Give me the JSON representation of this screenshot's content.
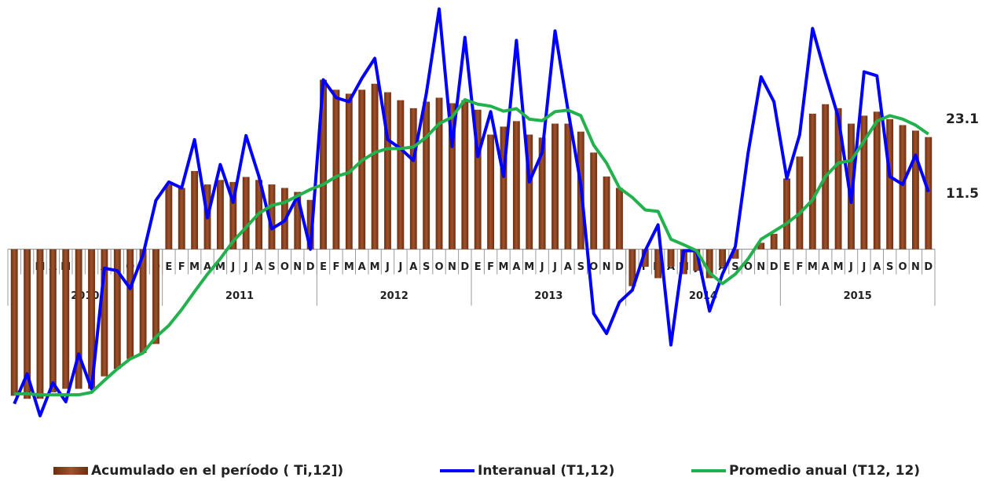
{
  "chart_data": {
    "type": "combo",
    "categories": [
      "E",
      "F",
      "M",
      "A",
      "M",
      "J",
      "J",
      "A",
      "S",
      "O",
      "N",
      "D",
      "E",
      "F",
      "M",
      "A",
      "M",
      "J",
      "J",
      "A",
      "S",
      "O",
      "N",
      "D",
      "E",
      "F",
      "M",
      "A",
      "M",
      "J",
      "J",
      "A",
      "S",
      "O",
      "N",
      "D",
      "E",
      "F",
      "M",
      "A",
      "M",
      "J",
      "J",
      "A",
      "S",
      "O",
      "N",
      "D",
      "E",
      "F",
      "M",
      "A",
      "M",
      "J",
      "J",
      "A",
      "S",
      "O",
      "N",
      "D",
      "E",
      "F",
      "M",
      "A",
      "M",
      "J",
      "J",
      "A",
      "S",
      "O",
      "N",
      "D"
    ],
    "years": [
      "2010",
      "2011",
      "2012",
      "2013",
      "2014",
      "2015"
    ],
    "ylim": [
      -35,
      50
    ],
    "series": [
      {
        "name": "Acumulado en el período ( Ti,12])",
        "type": "bar",
        "color": "#a0522d",
        "values": [
          -29.4,
          -30,
          -30,
          -28.7,
          -28,
          -28,
          -28,
          -25.5,
          -24,
          -22,
          -20.8,
          -19,
          13,
          12.3,
          15.7,
          13,
          13.9,
          13.5,
          14.5,
          13.9,
          13,
          12.3,
          11.5,
          9.9,
          34,
          32,
          31.2,
          32,
          33.2,
          31.5,
          29.9,
          28.3,
          29.6,
          30.4,
          29.3,
          29.9,
          28,
          23,
          24.6,
          25.7,
          23,
          22.4,
          25.2,
          25.2,
          23.6,
          19.4,
          14.6,
          12.3,
          -7.4,
          -3.5,
          -5.8,
          -3.5,
          -5,
          -4.3,
          -5.8,
          -3.5,
          -1.9,
          0,
          1.3,
          3.1,
          14.2,
          18.6,
          27.2,
          29.1,
          28.3,
          25.2,
          26.8,
          27.6,
          26.1,
          24.9,
          23.8,
          22.5
        ]
      },
      {
        "name": "Interanual (T1,12)",
        "type": "line",
        "color": "#0000ff",
        "values": [
          -31,
          -25,
          -33.4,
          -26.8,
          -30.6,
          -21,
          -28,
          -3.8,
          -4.3,
          -7.9,
          -1.1,
          9.8,
          13.5,
          12.3,
          22,
          6.3,
          17,
          9.4,
          22.8,
          14.6,
          4.1,
          5.7,
          10.7,
          0,
          34,
          30.4,
          29.6,
          34.3,
          38.3,
          22,
          20.2,
          17.8,
          31.2,
          48.2,
          20.6,
          42.5,
          18.6,
          27.6,
          14.6,
          41.9,
          13.5,
          19.4,
          43.8,
          28,
          13,
          -12.9,
          -16.9,
          -10.6,
          -8.2,
          -0.3,
          4.9,
          -19.2,
          -0.3,
          -0.3,
          -12.4,
          -5,
          0.5,
          19.4,
          34.6,
          29.6,
          14.2,
          23,
          44.3,
          35.1,
          26.5,
          9.4,
          35.6,
          34.8,
          14.6,
          13,
          18.9,
          11.5
        ]
      },
      {
        "name": "Promedio anual (T12, 12)",
        "type": "line",
        "color": "#22b14c",
        "values": [
          -29,
          -29,
          -29.2,
          -29.2,
          -29.2,
          -29.2,
          -28.7,
          -26.3,
          -24,
          -22,
          -20.8,
          -17.6,
          -15.3,
          -12.1,
          -8.5,
          -5,
          -1.9,
          1.6,
          4.4,
          7.2,
          8.8,
          9.4,
          10.7,
          12,
          13,
          14.6,
          15.4,
          17.8,
          19.4,
          20.2,
          20.2,
          20.5,
          22.5,
          25.2,
          26.5,
          30,
          29.1,
          28.7,
          27.7,
          28.2,
          26.1,
          25.8,
          27.6,
          27.9,
          26.8,
          20.9,
          17.3,
          12.3,
          10.4,
          7.9,
          7.6,
          2,
          0.9,
          -0.3,
          -4.7,
          -6.9,
          -5,
          -1.9,
          2,
          3.6,
          5.2,
          7.2,
          9.9,
          14.6,
          17.3,
          17.8,
          21.7,
          25.7,
          26.8,
          26.1,
          24.9,
          23.1
        ]
      }
    ]
  }
}
